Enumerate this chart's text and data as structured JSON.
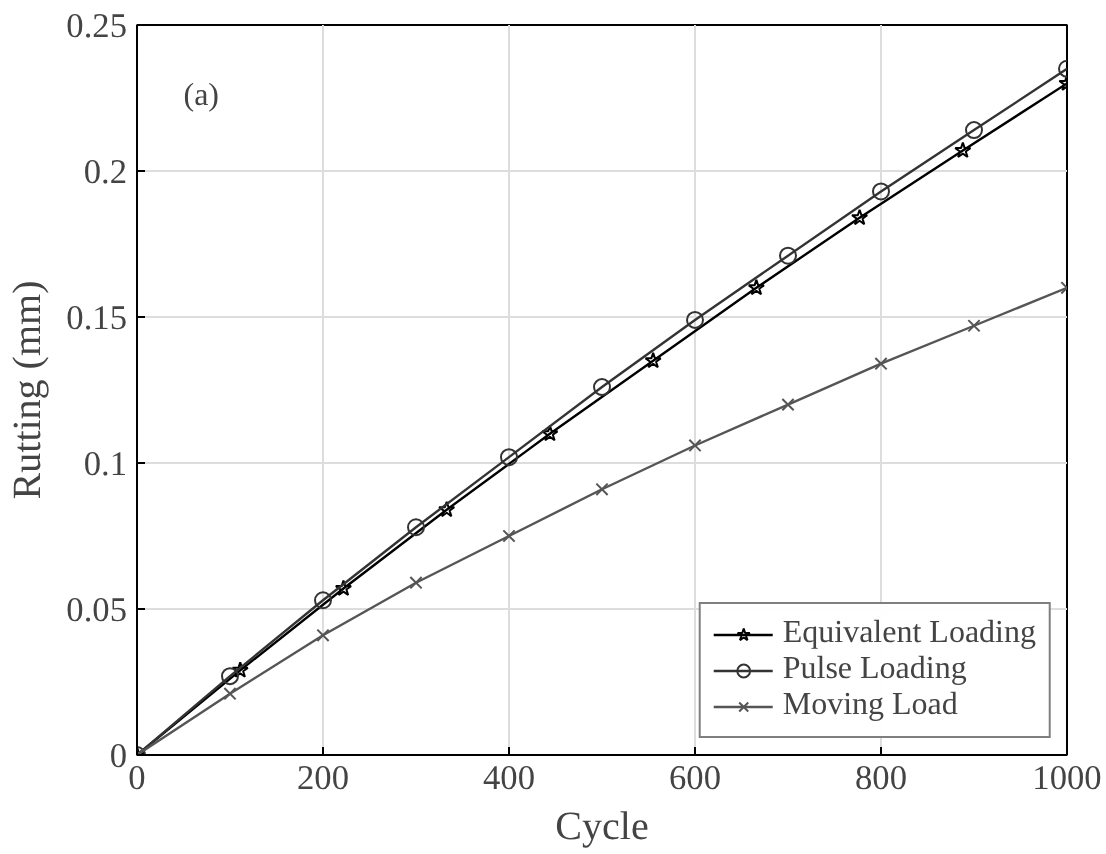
{
  "chart_data": {
    "type": "line",
    "xlabel": "Cycle",
    "ylabel": "Rutting (mm)",
    "xlim": [
      0,
      1000
    ],
    "ylim": [
      0,
      0.25
    ],
    "xticks": [
      0,
      200,
      400,
      600,
      800,
      1000
    ],
    "yticks": [
      0,
      0.05,
      0.1,
      0.15,
      0.2,
      0.25
    ],
    "grid": true,
    "legend": "bottom right",
    "line_style": "solid",
    "annotations": [
      "(a)"
    ],
    "series": [
      {
        "name": "Equivalent Loading",
        "color": "#000000",
        "marker": "star",
        "x": [
          0,
          111,
          222,
          333,
          444,
          555,
          666,
          777,
          888,
          1000
        ],
        "values": [
          0,
          0.029,
          0.057,
          0.084,
          0.11,
          0.135,
          0.16,
          0.184,
          0.207,
          0.23
        ]
      },
      {
        "name": "Pulse Loading",
        "color": "#333333",
        "marker": "circle",
        "x": [
          0,
          100,
          200,
          300,
          400,
          500,
          600,
          700,
          800,
          900,
          1000
        ],
        "values": [
          0,
          0.027,
          0.053,
          0.078,
          0.102,
          0.126,
          0.149,
          0.171,
          0.193,
          0.214,
          0.235
        ]
      },
      {
        "name": "Moving Load",
        "color": "#555555",
        "marker": "cross",
        "x": [
          0,
          100,
          200,
          300,
          400,
          500,
          600,
          700,
          800,
          900,
          1000
        ],
        "values": [
          0,
          0.021,
          0.041,
          0.059,
          0.075,
          0.091,
          0.106,
          0.12,
          0.134,
          0.147,
          0.16
        ]
      }
    ]
  }
}
